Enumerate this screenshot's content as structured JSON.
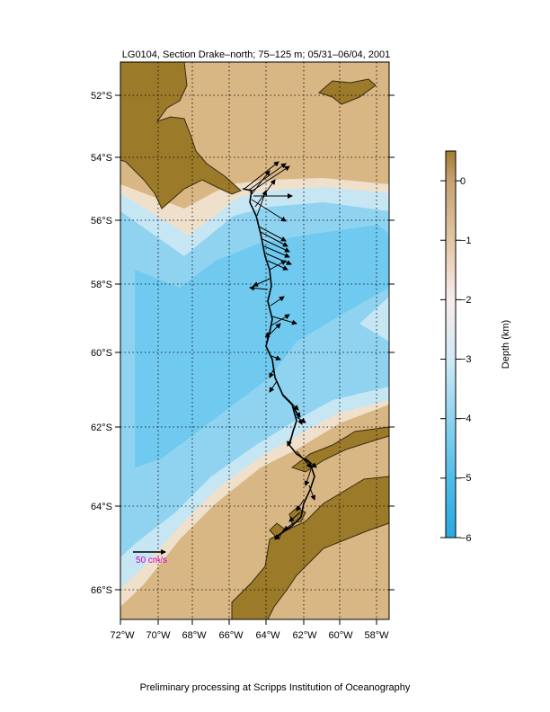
{
  "title": "LG0104, Section Drake–north; 75–125 m; 05/31–06/04, 2001",
  "footer": "Preliminary processing at Scripps Institution of Oceanography",
  "map": {
    "lon_range": [
      -72.2,
      -57.2
    ],
    "lat_range": [
      -66.8,
      -51.1
    ],
    "lon_ticks": [
      "72°W",
      "70°W",
      "68°W",
      "66°W",
      "64°W",
      "62°W",
      "60°W",
      "58°W"
    ],
    "lat_ticks": [
      "52°S",
      "54°S",
      "56°S",
      "58°S",
      "60°S",
      "62°S",
      "64°S",
      "66°S"
    ],
    "grid": true,
    "colors": {
      "land": "#9b7a2a",
      "shelf": "#d9b784",
      "slope": "#efe0cc",
      "deep": "#c6e6f4",
      "abyss": "#8fd3f0",
      "trench": "#5cc4ef",
      "coast": "#3a2a10"
    }
  },
  "scale_vector": {
    "label": "50 cm/s",
    "label_color": "#cc00cc"
  },
  "colorbar": {
    "label": "Depth (km)",
    "ticks": [
      "0",
      "−1",
      "−2",
      "−3",
      "−4",
      "−5",
      "−6"
    ],
    "range": [
      -6,
      0.5
    ],
    "stops": [
      {
        "depth": 0.5,
        "color": "#a47c30"
      },
      {
        "depth": 0.0,
        "color": "#c6a272"
      },
      {
        "depth": -1.0,
        "color": "#e3c6a2"
      },
      {
        "depth": -2.0,
        "color": "#f8ecec"
      },
      {
        "depth": -3.0,
        "color": "#cfeaf6"
      },
      {
        "depth": -4.0,
        "color": "#8fd3f0"
      },
      {
        "depth": -5.0,
        "color": "#4fbde9"
      },
      {
        "depth": -6.0,
        "color": "#2aa9e0"
      }
    ]
  }
}
